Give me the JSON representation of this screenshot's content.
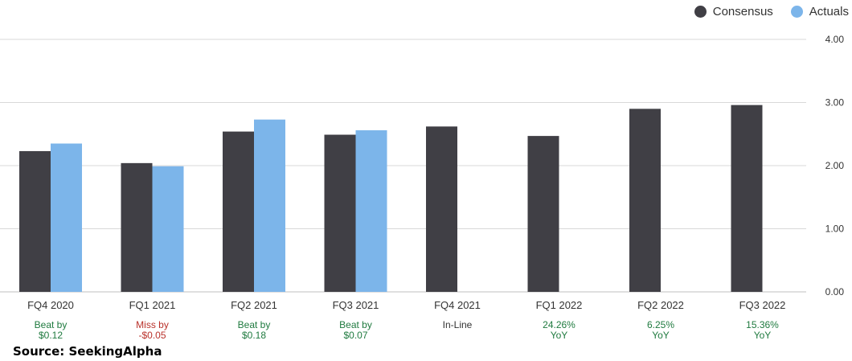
{
  "legend": {
    "consensus_label": "Consensus",
    "actuals_label": "Actuals"
  },
  "source": "Source: SeekingAlpha",
  "colors": {
    "consensus": "#403f45",
    "actuals": "#7cb5ea",
    "beat": "#1f7a3f",
    "miss": "#b9312a",
    "neutral": "#333333",
    "grid": "#d9d9d9"
  },
  "chart_data": {
    "type": "bar",
    "categories": [
      "FQ4 2020",
      "FQ1 2021",
      "FQ2 2021",
      "FQ3 2021",
      "FQ4 2021",
      "FQ1 2022",
      "FQ2 2022",
      "FQ3 2022"
    ],
    "series": [
      {
        "name": "Consensus",
        "values": [
          2.23,
          2.04,
          2.54,
          2.49,
          2.62,
          2.47,
          2.9,
          2.96
        ]
      },
      {
        "name": "Actuals",
        "values": [
          2.35,
          1.99,
          2.73,
          2.56,
          null,
          null,
          null,
          null
        ]
      }
    ],
    "ylim": [
      0,
      4
    ],
    "yticks": [
      0,
      1,
      2,
      3,
      4
    ],
    "ytick_labels": [
      "0.00",
      "1.00",
      "2.00",
      "3.00",
      "4.00"
    ],
    "y_axis_side": "right",
    "grid": true,
    "legend_position": "top-right",
    "annotations": [
      {
        "line1": "Beat by",
        "line2": "$0.12",
        "status": "beat"
      },
      {
        "line1": "Miss by",
        "line2": "-$0.05",
        "status": "miss"
      },
      {
        "line1": "Beat by",
        "line2": "$0.18",
        "status": "beat"
      },
      {
        "line1": "Beat by",
        "line2": "$0.07",
        "status": "beat"
      },
      {
        "line1": "In-Line",
        "line2": "",
        "status": "neutral"
      },
      {
        "line1": "24.26%",
        "line2": "YoY",
        "status": "beat"
      },
      {
        "line1": "6.25%",
        "line2": "YoY",
        "status": "beat"
      },
      {
        "line1": "15.36%",
        "line2": "YoY",
        "status": "beat"
      }
    ]
  }
}
